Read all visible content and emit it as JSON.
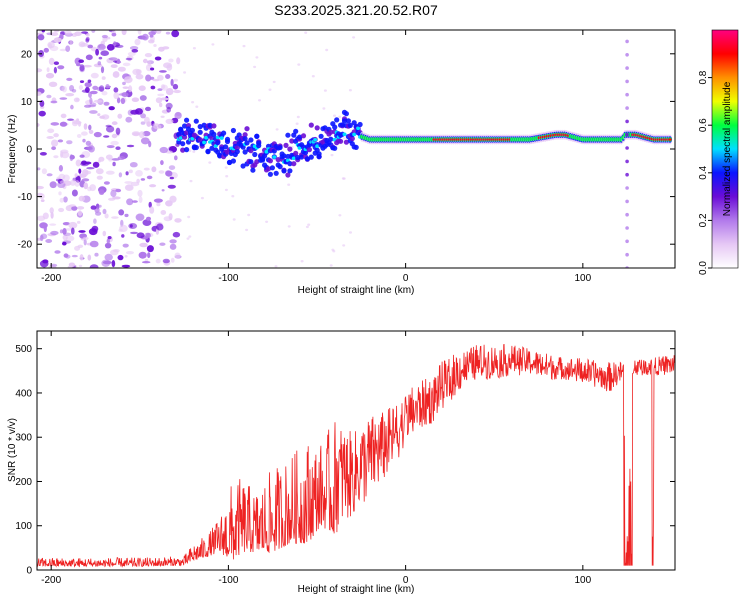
{
  "figure_title": "S233.2025.321.20.52.R07",
  "chart_data": [
    {
      "type": "heatmap",
      "name": "spectrogram",
      "xlabel": "Height of straight line (km)",
      "ylabel": "Frequency (Hz)",
      "xlim": [
        -208,
        152
      ],
      "ylim": [
        -25,
        25
      ],
      "xticks": [
        -200,
        -100,
        0,
        100
      ],
      "xtick_labels": [
        "-200",
        "-100",
        "0",
        "100"
      ],
      "yticks": [
        -20,
        -10,
        0,
        10,
        20
      ],
      "ytick_labels": [
        "-20",
        "-10",
        "0",
        "10",
        "20"
      ],
      "ridge": {
        "x": [
          -128,
          -115,
          -100,
          -90,
          -80,
          -70,
          -60,
          -50,
          -40,
          -33,
          -28,
          -20,
          -10,
          0,
          10,
          25,
          50,
          70,
          85,
          90,
          100,
          110,
          118,
          122,
          124,
          130,
          140,
          150
        ],
        "freq": [
          3,
          3,
          1,
          0,
          -1,
          -2,
          0,
          2,
          3,
          5,
          3,
          2,
          2,
          2,
          2,
          2,
          2,
          2,
          3,
          3,
          2,
          2,
          2,
          2,
          3,
          3,
          2,
          2
        ]
      },
      "noise_region_x": [
        -208,
        -128
      ],
      "spike_x": 125,
      "colorbar": {
        "label": "Normalized spectral amplitude",
        "min": 0,
        "max": 1,
        "ticks": [
          0.0,
          0.2,
          0.4,
          0.6,
          0.8
        ],
        "tick_labels": [
          "0.0",
          "0.2",
          "0.4",
          "0.6",
          "0.8"
        ],
        "colors": [
          "#ffffff",
          "#e6c8f5",
          "#b27aeb",
          "#6a0dd6",
          "#0a14ff",
          "#00e0ff",
          "#00ff40",
          "#f0ff00",
          "#ff9000",
          "#ff0000",
          "#ff0080"
        ]
      }
    },
    {
      "type": "line",
      "name": "snr",
      "xlabel": "Height of straight line (km)",
      "ylabel": "SNR (10 * v/v)",
      "xlim": [
        -208,
        152
      ],
      "ylim": [
        0,
        540
      ],
      "xticks": [
        -200,
        -100,
        0,
        100
      ],
      "xtick_labels": [
        "-200",
        "-100",
        "0",
        "100"
      ],
      "yticks": [
        0,
        100,
        200,
        300,
        400,
        500
      ],
      "ytick_labels": [
        "0",
        "100",
        "200",
        "300",
        "400",
        "500"
      ],
      "color": "#ee2222",
      "envelope": {
        "x": [
          -208,
          -150,
          -125,
          -120,
          -112,
          -105,
          -98,
          -92,
          -85,
          -75,
          -65,
          -55,
          -48,
          -40,
          -30,
          -25,
          -20,
          -12,
          -5,
          0,
          5,
          10,
          15,
          20,
          25,
          30,
          35,
          40,
          50,
          60,
          70,
          80,
          90,
          100,
          110,
          115,
          120,
          130,
          140,
          152
        ],
        "lo": [
          8,
          8,
          10,
          20,
          30,
          40,
          20,
          40,
          40,
          40,
          60,
          60,
          100,
          80,
          120,
          140,
          160,
          200,
          240,
          290,
          300,
          320,
          330,
          360,
          380,
          400,
          420,
          430,
          430,
          440,
          440,
          430,
          430,
          420,
          410,
          400,
          420,
          440,
          440,
          440
        ],
        "hi": [
          28,
          28,
          32,
          60,
          80,
          120,
          200,
          210,
          180,
          230,
          260,
          300,
          290,
          340,
          310,
          330,
          350,
          360,
          380,
          400,
          420,
          430,
          440,
          470,
          480,
          500,
          500,
          510,
          510,
          510,
          500,
          490,
          480,
          480,
          470,
          470,
          470,
          480,
          480,
          490
        ]
      },
      "dropouts": [
        {
          "x_start": 123,
          "x_end": 128,
          "floor": 10
        },
        {
          "x_start": 139,
          "x_end": 140,
          "floor": 10
        }
      ]
    }
  ]
}
